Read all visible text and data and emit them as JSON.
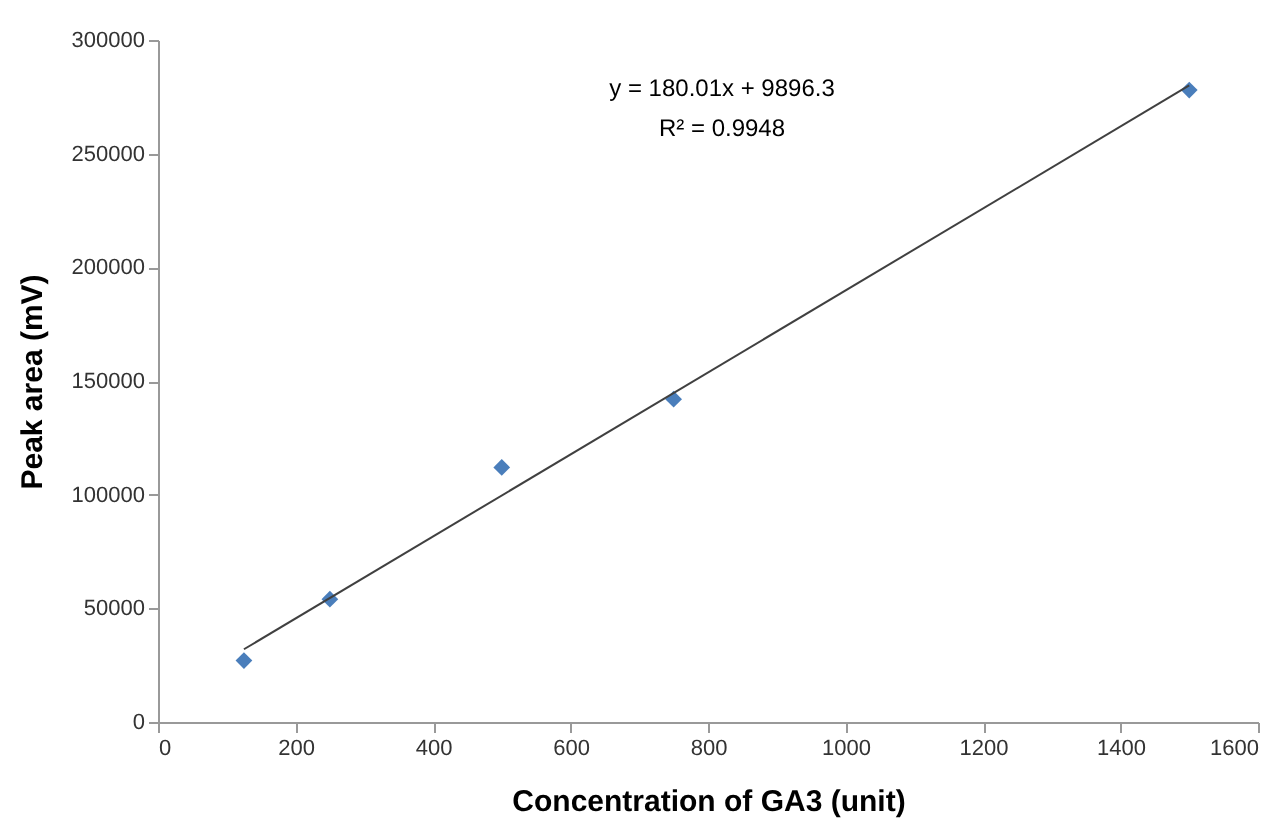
{
  "chart_data": {
    "type": "scatter",
    "xlabel": "Concentration of GA3  (unit)",
    "ylabel": "Peak area (mV)",
    "annotations": [
      "y = 180.01x + 9896.3",
      "R² = 0.9948"
    ],
    "x": [
      125,
      250,
      500,
      750,
      1500
    ],
    "series": [
      {
        "color": "#4a7ebb",
        "marker": "diamond",
        "values": [
          27000,
          54000,
          112000,
          142000,
          278000
        ]
      },
      {
        "type": "line",
        "color": "#404040",
        "x": [
          125,
          1500
        ],
        "values": [
          32000,
          280000
        ]
      }
    ],
    "xlim": [
      0,
      1600
    ],
    "xticks": [
      0,
      200,
      400,
      600,
      800,
      1000,
      1200,
      1400,
      1600
    ],
    "ylim": [
      0,
      300000
    ],
    "yticks": [
      0,
      50000,
      100000,
      150000,
      200000,
      250000,
      300000
    ],
    "grid": false
  }
}
